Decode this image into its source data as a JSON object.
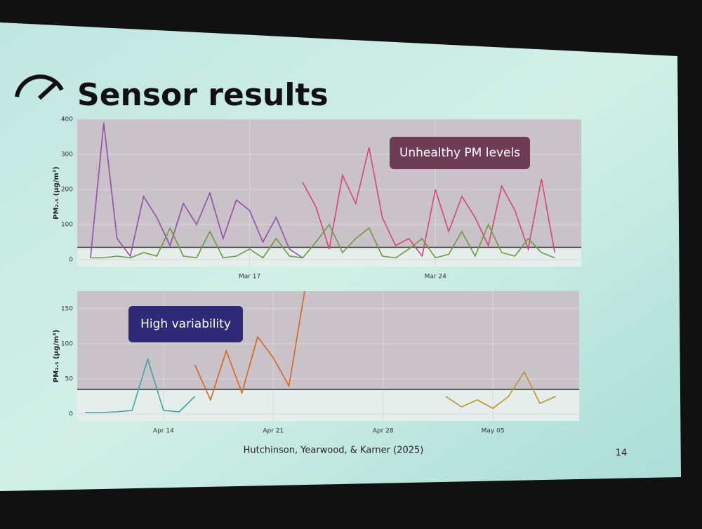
{
  "slide": {
    "title": "Sensor results",
    "citation": "Hutchinson, Yearwood, & Karner (2025)",
    "page": "14"
  },
  "chart_data": [
    {
      "type": "line",
      "ylabel": "PM₂.₅ (µg/m³)",
      "annotation": "Unhealthy PM levels",
      "threshold": 35,
      "x": [
        11,
        11.5,
        12,
        12.5,
        13,
        13.5,
        14,
        14.5,
        15,
        15.5,
        16,
        16.5,
        17,
        17.5,
        18,
        18.5,
        19,
        19.5,
        20,
        20.5,
        21,
        21.5,
        22,
        22.5,
        23,
        23.5,
        24,
        24.5,
        25,
        25.5,
        26,
        26.5,
        27,
        27.5,
        28,
        28.5
      ],
      "xlim": [
        10.5,
        29.5
      ],
      "xticks": [
        {
          "value": 17,
          "label": "Mar 17"
        },
        {
          "value": 24,
          "label": "Mar 24"
        }
      ],
      "ylim": [
        -20,
        400
      ],
      "yticks": [
        0,
        100,
        200,
        300,
        400
      ],
      "grid": true,
      "series": [
        {
          "color": "#8e4fa8",
          "values": [
            5,
            390,
            60,
            10,
            180,
            120,
            40,
            160,
            100,
            190,
            60,
            170,
            140,
            50,
            120,
            30,
            5,
            null,
            null,
            null,
            null,
            null,
            null,
            null,
            null,
            null,
            null,
            null,
            null,
            null,
            null,
            null,
            null,
            null,
            null,
            null
          ]
        },
        {
          "color": "#d8466e",
          "values": [
            null,
            null,
            null,
            null,
            null,
            null,
            null,
            null,
            null,
            null,
            null,
            null,
            null,
            null,
            null,
            null,
            220,
            150,
            30,
            240,
            160,
            320,
            120,
            40,
            60,
            10,
            200,
            80,
            180,
            120,
            40,
            210,
            140,
            30,
            230,
            20
          ]
        },
        {
          "color": "#6a9a3a",
          "values": [
            5,
            5,
            10,
            5,
            20,
            10,
            90,
            10,
            5,
            80,
            5,
            10,
            30,
            5,
            60,
            10,
            5,
            50,
            100,
            20,
            60,
            90,
            10,
            5,
            30,
            60,
            5,
            15,
            80,
            10,
            100,
            20,
            10,
            60,
            20,
            5
          ]
        }
      ]
    },
    {
      "type": "line",
      "ylabel": "PM₂.₅ (µg/m³)",
      "annotation": "High variability",
      "threshold": 35,
      "x": [
        9,
        10,
        11,
        12,
        13,
        14,
        15,
        16,
        17,
        18,
        19,
        20,
        21,
        22,
        23,
        24,
        25,
        26,
        27,
        28,
        29,
        30,
        31,
        32,
        33,
        34,
        35,
        36,
        37,
        38,
        39
      ],
      "xlim": [
        8.5,
        40.5
      ],
      "xticks": [
        {
          "value": 14,
          "label": "Apr 14"
        },
        {
          "value": 21,
          "label": "Apr 21"
        },
        {
          "value": 28,
          "label": "Apr 28"
        },
        {
          "value": 35,
          "label": "May 05"
        }
      ],
      "ylim": [
        -10,
        175
      ],
      "yticks": [
        0,
        50,
        100,
        150
      ],
      "grid": true,
      "series": [
        {
          "color": "#3aa6a6",
          "values": [
            2,
            2,
            3,
            5,
            78,
            5,
            3,
            25,
            null,
            null,
            null,
            null,
            null,
            null,
            null,
            null,
            null,
            null,
            null,
            null,
            null,
            null,
            null,
            null,
            null,
            null,
            null,
            null,
            null,
            null,
            null
          ]
        },
        {
          "color": "#d8641e",
          "values": [
            null,
            null,
            null,
            null,
            null,
            null,
            null,
            70,
            20,
            90,
            30,
            110,
            80,
            40,
            175,
            null,
            null,
            null,
            null,
            null,
            null,
            null,
            null,
            null,
            null,
            null,
            null,
            null,
            null,
            null,
            null
          ]
        },
        {
          "color": "#b5962a",
          "values": [
            null,
            null,
            null,
            null,
            null,
            null,
            null,
            null,
            null,
            null,
            null,
            null,
            null,
            null,
            null,
            null,
            null,
            null,
            null,
            null,
            null,
            null,
            null,
            25,
            10,
            20,
            8,
            25,
            60,
            15,
            25
          ]
        }
      ]
    }
  ]
}
